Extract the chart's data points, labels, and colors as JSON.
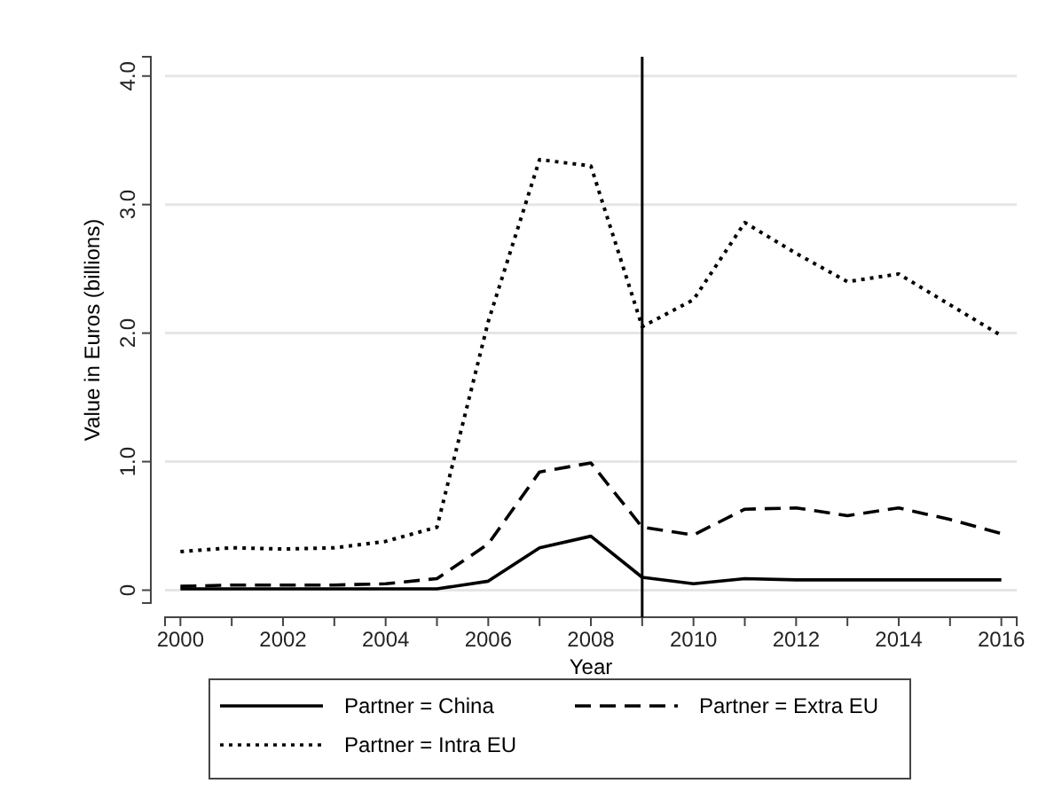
{
  "chart_data": {
    "type": "line",
    "xlabel": "Year",
    "ylabel": "Value in Euros (billions)",
    "x": [
      2000,
      2001,
      2002,
      2003,
      2004,
      2005,
      2006,
      2007,
      2008,
      2009,
      2010,
      2011,
      2012,
      2013,
      2014,
      2015,
      2016
    ],
    "series": [
      {
        "name": "Partner = China",
        "color": "#000000",
        "line_style": "solid",
        "values": [
          0.01,
          0.01,
          0.01,
          0.01,
          0.01,
          0.01,
          0.07,
          0.33,
          0.42,
          0.1,
          0.05,
          0.09,
          0.08,
          0.08,
          0.08,
          0.08,
          0.08
        ]
      },
      {
        "name": "Partner = Extra EU",
        "color": "#000000",
        "line_style": "dashed",
        "values": [
          0.03,
          0.04,
          0.04,
          0.04,
          0.05,
          0.09,
          0.36,
          0.92,
          0.99,
          0.49,
          0.43,
          0.63,
          0.64,
          0.58,
          0.64,
          0.55,
          0.44
        ]
      },
      {
        "name": "Partner = Intra EU",
        "color": "#000000",
        "line_style": "dotted",
        "values": [
          0.3,
          0.33,
          0.32,
          0.33,
          0.38,
          0.49,
          2.09,
          3.35,
          3.3,
          2.05,
          2.26,
          2.86,
          2.62,
          2.4,
          2.46,
          2.22,
          1.98
        ]
      }
    ],
    "xlim": [
      1999.7,
      2016.3
    ],
    "xticks": [
      2000,
      {
        "value": 2001,
        "label": null
      },
      2002,
      {
        "value": 2003,
        "label": null
      },
      2004,
      {
        "value": 2005,
        "label": null
      },
      2006,
      {
        "value": 2007,
        "label": null
      },
      2008,
      {
        "value": 2009,
        "label": null
      },
      2010,
      {
        "value": 2011,
        "label": null
      },
      2012,
      {
        "value": 2013,
        "label": null
      },
      2014,
      {
        "value": 2015,
        "label": null
      },
      2016
    ],
    "ylim": [
      -0.1,
      4.15
    ],
    "yticks": [
      0,
      {
        "value": 1,
        "label": "1.0"
      },
      {
        "value": 2,
        "label": "2.0"
      },
      {
        "value": 3,
        "label": "3.0"
      },
      {
        "value": 4,
        "label": "4.0"
      }
    ],
    "grid": "y",
    "legend": "bottom",
    "ref_lines": [
      {
        "axis": "x",
        "value": 2009,
        "color": "#000000"
      }
    ]
  }
}
